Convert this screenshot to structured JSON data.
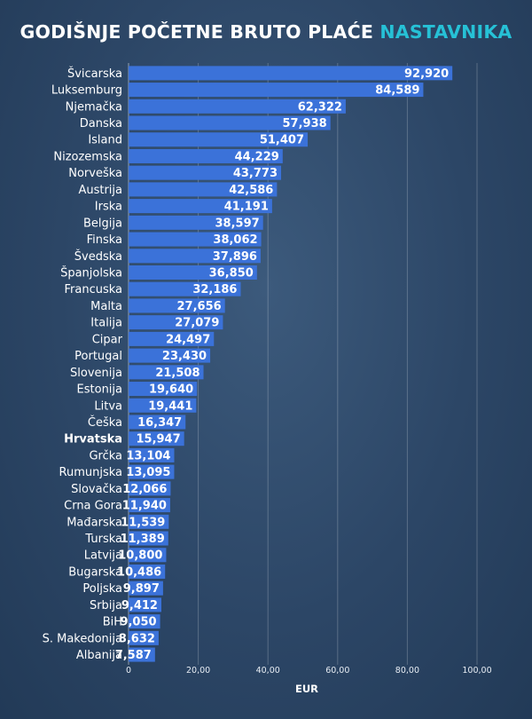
{
  "title": {
    "main": "GODIŠNJE POČETNE BRUTO PLAĆE",
    "accent": "NASTAVNIKA"
  },
  "colors": {
    "background": "#2c4666",
    "bar": "#3b72d9",
    "accent": "#26c1d6",
    "text": "#ffffff"
  },
  "chart_data": {
    "type": "bar",
    "orientation": "horizontal",
    "title": "GODIŠNJE POČETNE BRUTO PLAĆE NASTAVNIKA",
    "xlabel": "EUR",
    "ylabel": "",
    "xlim": [
      0,
      100000
    ],
    "xticks": [
      {
        "value": 0,
        "label": "0"
      },
      {
        "value": 20000,
        "label": "20,00"
      },
      {
        "value": 40000,
        "label": "40,00"
      },
      {
        "value": 60000,
        "label": "60,00"
      },
      {
        "value": 80000,
        "label": "80,00"
      },
      {
        "value": 100000,
        "label": "100,00"
      }
    ],
    "grid": true,
    "highlight": "Hrvatska",
    "categories": [
      "Švicarska",
      "Luksemburg",
      "Njemačka",
      "Danska",
      "Island",
      "Nizozemska",
      "Norveška",
      "Austrija",
      "Irska",
      "Belgija",
      "Finska",
      "Švedska",
      "Španjolska",
      "Francuska",
      "Malta",
      "Italija",
      "Cipar",
      "Portugal",
      "Slovenija",
      "Estonija",
      "Litva",
      "Češka",
      "Hrvatska",
      "Grčka",
      "Rumunjska",
      "Slovačka",
      "Crna Gora",
      "Mađarska",
      "Turska",
      "Latvija",
      "Bugarska",
      "Poljska",
      "Srbija",
      "BiH",
      "S. Makedonija",
      "Albanija"
    ],
    "values": [
      92920,
      84589,
      62322,
      57938,
      51407,
      44229,
      43773,
      42586,
      41191,
      38597,
      38062,
      37896,
      36850,
      32186,
      27656,
      27079,
      24497,
      23430,
      21508,
      19640,
      19441,
      16347,
      15947,
      13104,
      13095,
      12066,
      11940,
      11539,
      11389,
      10800,
      10486,
      9897,
      9412,
      9050,
      8632,
      7587
    ],
    "value_labels": [
      "92,920",
      "84,589",
      "62,322",
      "57,938",
      "51,407",
      "44,229",
      "43,773",
      "42,586",
      "41,191",
      "38,597",
      "38,062",
      "37,896",
      "36,850",
      "32,186",
      "27,656",
      "27,079",
      "24,497",
      "23,430",
      "21,508",
      "19,640",
      "19,441",
      "16,347",
      "15,947",
      "13,104",
      "13,095",
      "12,066",
      "11,940",
      "11,539",
      "11,389",
      "10,800",
      "10,486",
      "9,897",
      "9,412",
      "9,050",
      "8,632",
      "7,587"
    ]
  }
}
